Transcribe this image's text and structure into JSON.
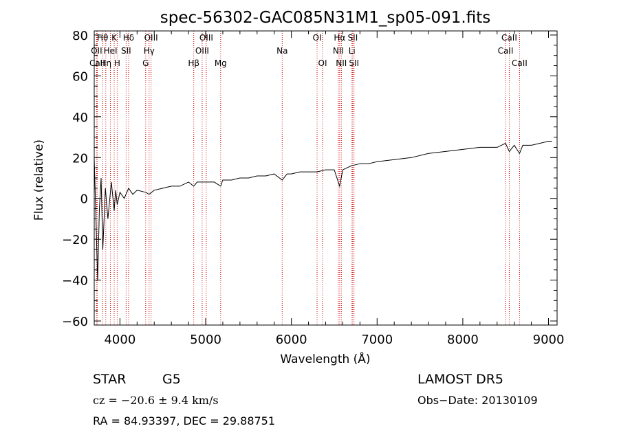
{
  "chart_data": {
    "type": "line",
    "title": "spec-56302-GAC085N31M1_sp05-091.fits",
    "xlabel": "Wavelength (Å)",
    "ylabel": "Flux (relative)",
    "xlim": [
      3700,
      9100
    ],
    "ylim": [
      -62,
      82
    ],
    "xticks": [
      4000,
      5000,
      6000,
      7000,
      8000,
      9000
    ],
    "yticks": [
      -60,
      -40,
      -20,
      0,
      20,
      40,
      60,
      80
    ],
    "grid": false,
    "line_color": "#000000",
    "marker_color": "#cc0000",
    "spectrum": {
      "name": "",
      "x": [
        3700,
        3720,
        3740,
        3760,
        3780,
        3800,
        3830,
        3860,
        3900,
        3933,
        3950,
        3968,
        4000,
        4050,
        4101,
        4150,
        4200,
        4300,
        4340,
        4400,
        4500,
        4600,
        4700,
        4800,
        4861,
        4900,
        5000,
        5100,
        5175,
        5200,
        5300,
        5400,
        5500,
        5600,
        5700,
        5800,
        5893,
        5950,
        6000,
        6100,
        6200,
        6300,
        6400,
        6500,
        6563,
        6600,
        6700,
        6800,
        6900,
        7000,
        7200,
        7400,
        7600,
        7800,
        8000,
        8200,
        8400,
        8498,
        8542,
        8600,
        8662,
        8700,
        8800,
        8900,
        9000,
        9040
      ],
      "y": [
        20,
        -10,
        -40,
        -5,
        10,
        -25,
        5,
        -10,
        8,
        -6,
        4,
        -3,
        3,
        0,
        5,
        2,
        4,
        3,
        2,
        4,
        5,
        6,
        6,
        8,
        6,
        8,
        8,
        8,
        6,
        9,
        9,
        10,
        10,
        11,
        11,
        12,
        9,
        12,
        12,
        13,
        13,
        13,
        14,
        14,
        6,
        14,
        16,
        17,
        17,
        18,
        19,
        20,
        22,
        23,
        24,
        25,
        25,
        27,
        23,
        26,
        22,
        26,
        26,
        27,
        28,
        28
      ]
    },
    "lines": [
      {
        "wave": 3727,
        "label": "OII",
        "row": 2
      },
      {
        "wave": 3735,
        "label": "CaII",
        "row": 3
      },
      {
        "wave": 3798,
        "label": "Hθ",
        "row": 1
      },
      {
        "wave": 3835,
        "label": "Hη",
        "row": 3
      },
      {
        "wave": 3889,
        "label": "HeI",
        "row": 2
      },
      {
        "wave": 3933,
        "label": "K",
        "row": 1
      },
      {
        "wave": 3968,
        "label": "H",
        "row": 3
      },
      {
        "wave": 4072,
        "label": "SII",
        "row": 2
      },
      {
        "wave": 4101,
        "label": "Hδ",
        "row": 1
      },
      {
        "wave": 4300,
        "label": "G",
        "row": 3
      },
      {
        "wave": 4340,
        "label": "Hγ",
        "row": 2
      },
      {
        "wave": 4363,
        "label": "OIII",
        "row": 1
      },
      {
        "wave": 4861,
        "label": "Hβ",
        "row": 3
      },
      {
        "wave": 4959,
        "label": "OIII",
        "row": 2
      },
      {
        "wave": 5007,
        "label": "OIII",
        "row": 1
      },
      {
        "wave": 5175,
        "label": "Mg",
        "row": 3
      },
      {
        "wave": 5893,
        "label": "Na",
        "row": 2
      },
      {
        "wave": 6300,
        "label": "OI",
        "row": 1
      },
      {
        "wave": 6364,
        "label": "OI",
        "row": 3
      },
      {
        "wave": 6548,
        "label": "NII",
        "row": 2
      },
      {
        "wave": 6563,
        "label": "Hα",
        "row": 1
      },
      {
        "wave": 6583,
        "label": "NII",
        "row": 3
      },
      {
        "wave": 6707,
        "label": "Li",
        "row": 2
      },
      {
        "wave": 6716,
        "label": "SII",
        "row": 1
      },
      {
        "wave": 6731,
        "label": "SII",
        "row": 3
      },
      {
        "wave": 8498,
        "label": "CaII",
        "row": 2
      },
      {
        "wave": 8542,
        "label": "CaII",
        "row": 1
      },
      {
        "wave": 8662,
        "label": "CaII",
        "row": 3
      }
    ]
  },
  "info": {
    "class": "STAR",
    "subclass": "G5",
    "survey": "LAMOST DR5",
    "cz": "cz = −20.6 ± 9.4 km/s",
    "obs_date": "Obs−Date: 20130109",
    "coords": "RA =  84.93397, DEC =  29.88751"
  }
}
